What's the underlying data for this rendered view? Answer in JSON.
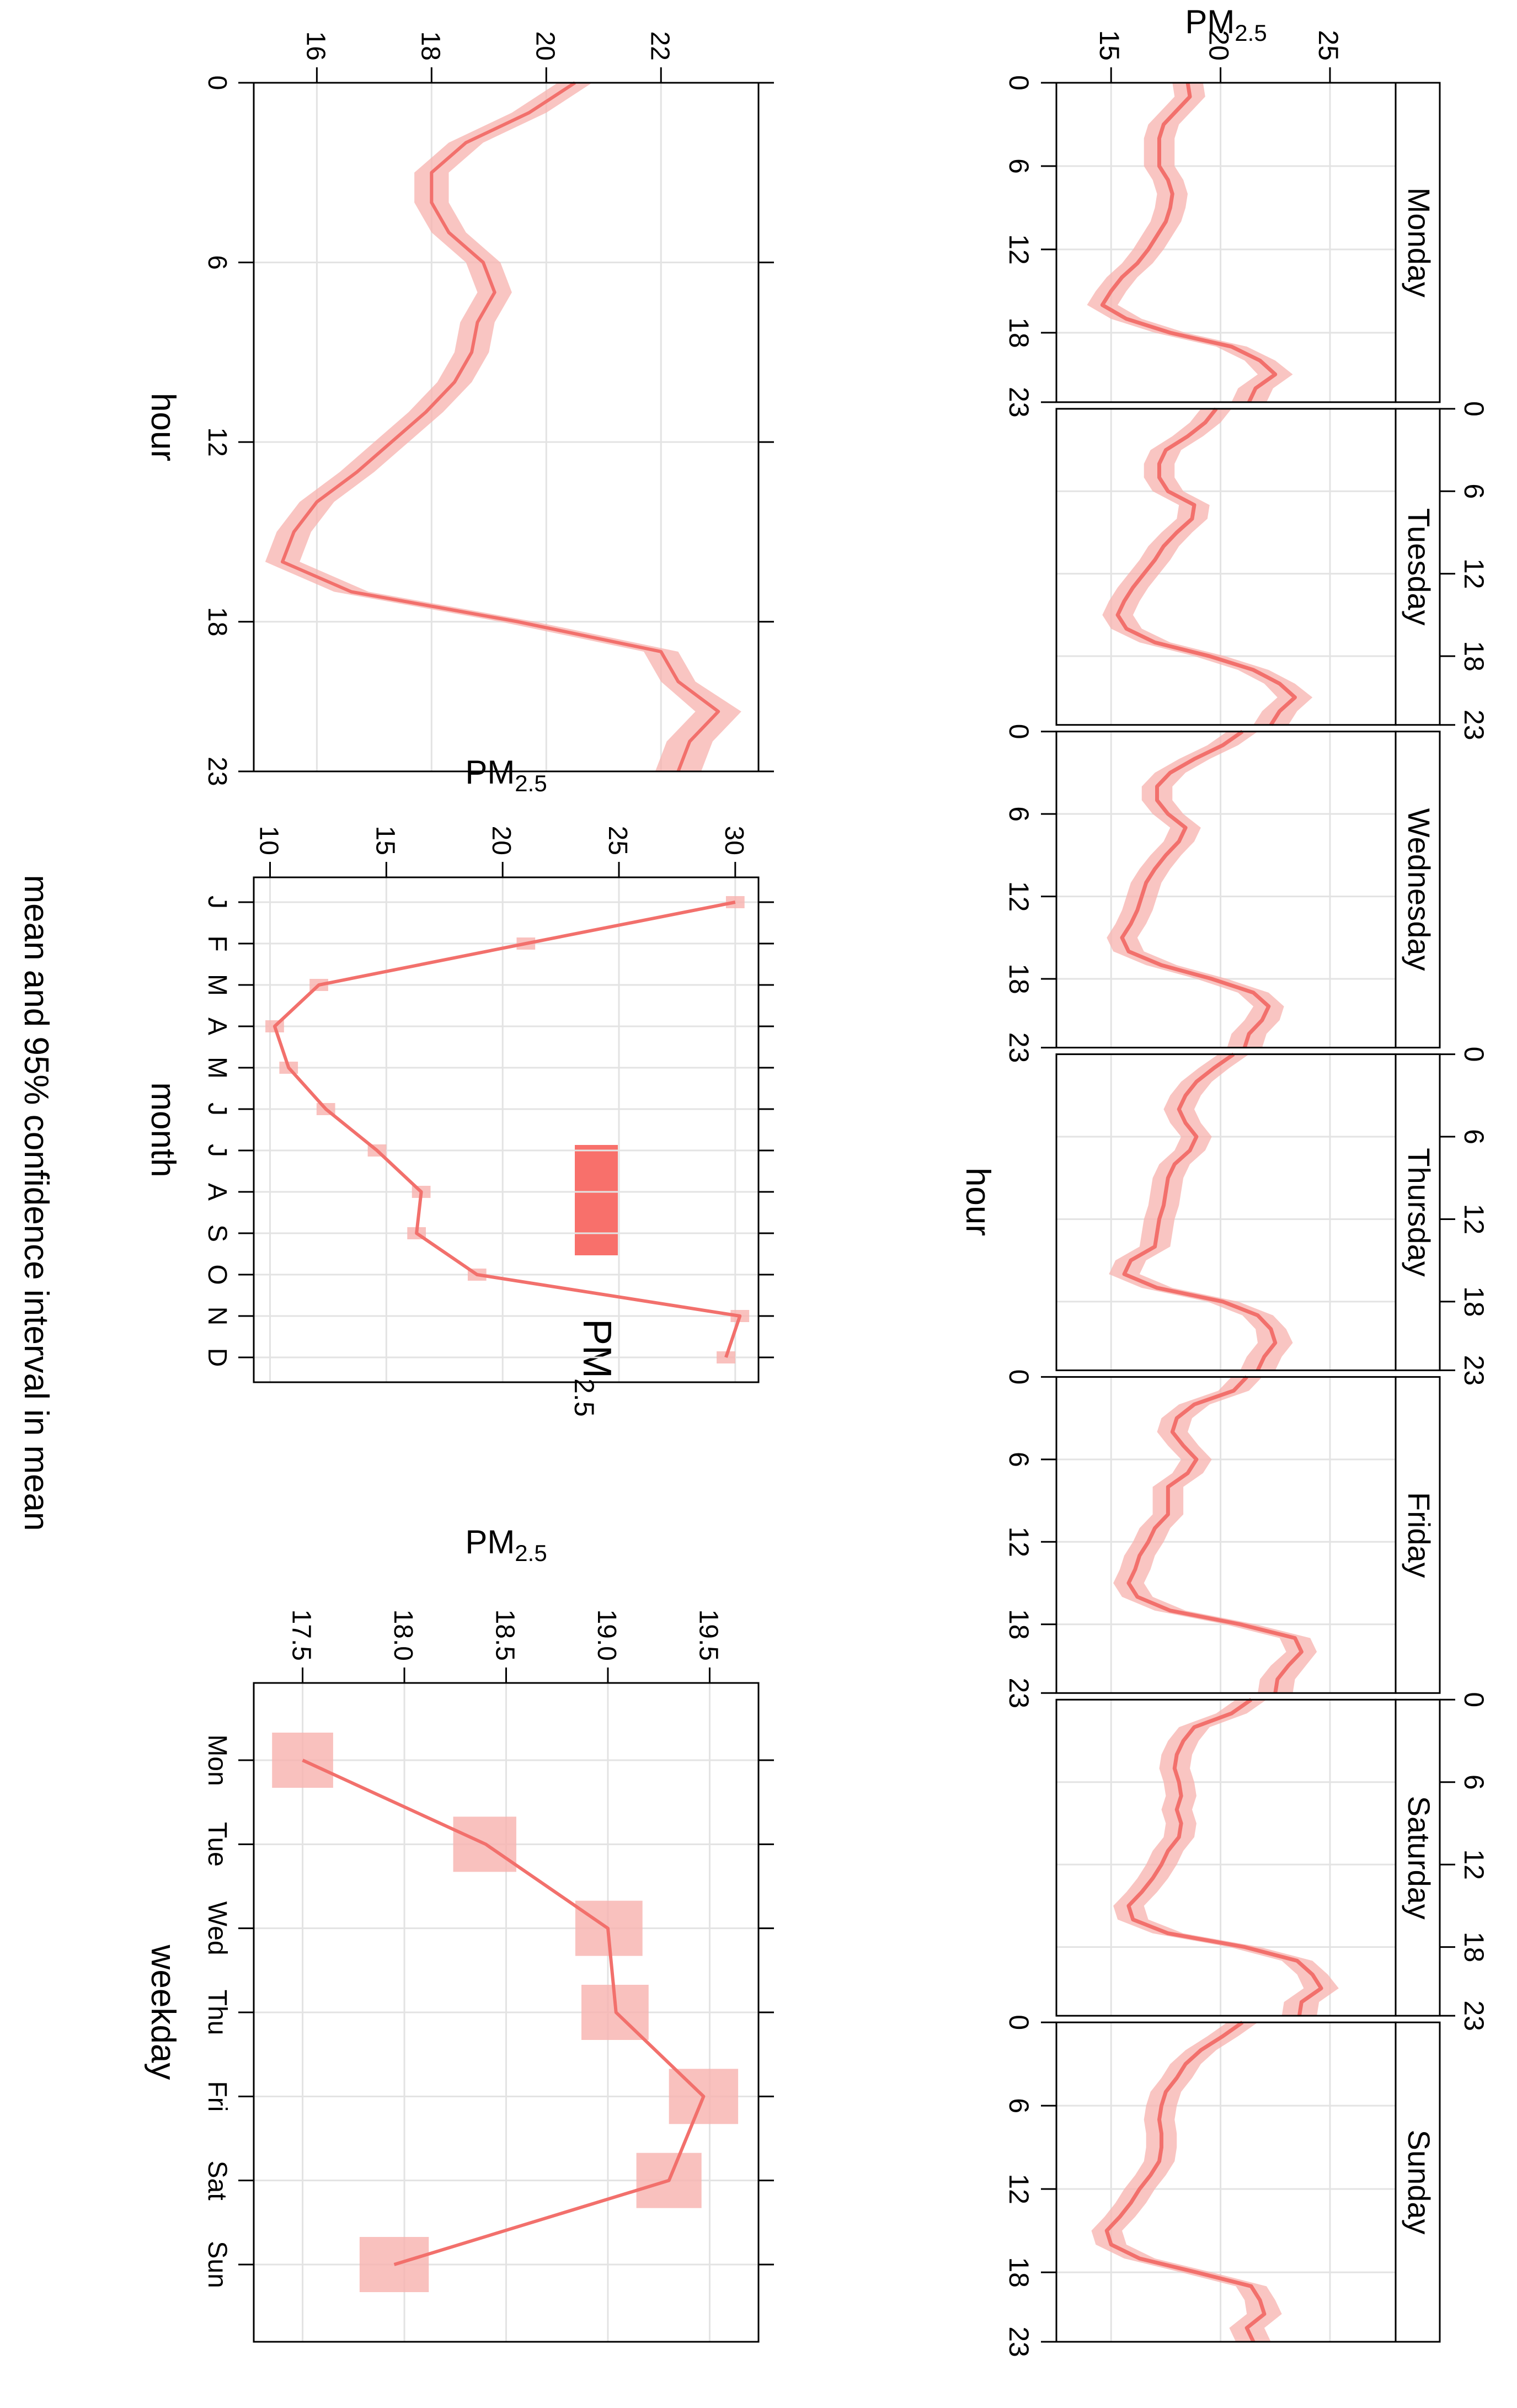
{
  "colors": {
    "line": "#f2706c",
    "band": "#f7b1ae",
    "legend": "#f8706b",
    "grid": "#e3e3e3",
    "axis": "#000000"
  },
  "legend": {
    "label": "PM",
    "label_sub": "2.5"
  },
  "overall_title": "mean and 95% confidence interval in mean",
  "chart_data": [
    {
      "id": "hour_by_weekday",
      "type": "line",
      "title": "",
      "xlabel": "hour",
      "ylabel": "PM",
      "ylabel_sub": "2.5",
      "xlim": [
        0,
        23
      ],
      "ylim": [
        12.5,
        28
      ],
      "x_ticks": [
        0,
        6,
        12,
        18,
        23
      ],
      "y_ticks": [
        15,
        20,
        25
      ],
      "panels": [
        {
          "name": "Monday",
          "values": [
            18.5,
            18.6,
            18.0,
            17.4,
            17.2,
            17.2,
            17.2,
            17.6,
            17.8,
            17.7,
            17.5,
            17.1,
            16.7,
            16.2,
            15.5,
            15.0,
            14.6,
            15.7,
            17.7,
            20.5,
            21.8,
            22.5,
            21.6,
            21.3
          ],
          "lower": [
            17.8,
            17.9,
            17.3,
            16.7,
            16.5,
            16.5,
            16.5,
            16.9,
            17.1,
            17.0,
            16.8,
            16.4,
            16.0,
            15.5,
            14.8,
            14.3,
            13.9,
            15.0,
            17.0,
            19.8,
            21.1,
            21.7,
            20.8,
            20.5
          ],
          "upper": [
            19.2,
            19.3,
            18.7,
            18.1,
            17.9,
            17.9,
            17.9,
            18.3,
            18.5,
            18.4,
            18.2,
            17.8,
            17.4,
            16.9,
            16.2,
            15.7,
            15.3,
            16.4,
            18.4,
            21.2,
            22.5,
            23.3,
            22.4,
            22.1
          ]
        },
        {
          "name": "Tuesday",
          "values": [
            19.8,
            19.3,
            18.5,
            17.5,
            17.2,
            17.2,
            17.6,
            18.8,
            18.7,
            18.0,
            17.4,
            17.0,
            16.5,
            16.0,
            15.6,
            15.3,
            15.7,
            17.0,
            19.5,
            21.5,
            22.7,
            23.4,
            22.7,
            22.3
          ],
          "lower": [
            19.1,
            18.6,
            17.8,
            16.8,
            16.5,
            16.5,
            16.9,
            18.1,
            18.0,
            17.3,
            16.7,
            16.3,
            15.8,
            15.3,
            14.9,
            14.6,
            15.0,
            16.3,
            18.8,
            20.8,
            22.0,
            22.6,
            21.9,
            21.5
          ],
          "upper": [
            20.5,
            20.0,
            19.2,
            18.2,
            17.9,
            17.9,
            18.3,
            19.5,
            19.4,
            18.7,
            18.1,
            17.7,
            17.2,
            16.7,
            16.3,
            16.0,
            16.4,
            17.7,
            20.2,
            22.2,
            23.4,
            24.2,
            23.5,
            23.1
          ]
        },
        {
          "name": "Wednesday",
          "values": [
            21.0,
            20.1,
            18.8,
            17.7,
            17.1,
            17.1,
            17.6,
            18.4,
            18.1,
            17.5,
            17.0,
            16.6,
            16.4,
            16.2,
            15.9,
            15.5,
            15.8,
            17.3,
            19.6,
            21.5,
            22.2,
            21.9,
            21.3,
            21.1
          ],
          "lower": [
            20.3,
            19.4,
            18.1,
            17.0,
            16.4,
            16.4,
            16.9,
            17.7,
            17.4,
            16.8,
            16.3,
            15.9,
            15.7,
            15.5,
            15.2,
            14.8,
            15.1,
            16.6,
            18.9,
            20.8,
            21.5,
            21.1,
            20.5,
            20.3
          ],
          "upper": [
            21.7,
            20.8,
            19.5,
            18.4,
            17.8,
            17.8,
            18.3,
            19.1,
            18.8,
            18.2,
            17.7,
            17.3,
            17.1,
            16.9,
            16.6,
            16.2,
            16.5,
            18.0,
            20.3,
            22.2,
            22.9,
            22.7,
            22.1,
            21.9
          ],
          "note": "no gap"
        },
        {
          "name": "Thursday",
          "values": [
            20.6,
            19.7,
            18.9,
            18.4,
            18.1,
            18.4,
            18.9,
            18.6,
            17.9,
            17.6,
            17.5,
            17.4,
            17.2,
            17.1,
            17.0,
            15.9,
            15.6,
            17.1,
            20.1,
            21.7,
            22.3,
            22.5,
            22.0,
            21.7
          ],
          "lower": [
            19.9,
            19.0,
            18.2,
            17.7,
            17.4,
            17.7,
            18.2,
            17.9,
            17.2,
            16.9,
            16.8,
            16.7,
            16.5,
            16.4,
            16.3,
            15.2,
            14.9,
            16.4,
            19.4,
            21.0,
            21.6,
            21.7,
            21.2,
            20.9
          ],
          "upper": [
            21.3,
            20.4,
            19.6,
            19.1,
            18.8,
            19.1,
            19.6,
            19.3,
            18.6,
            18.3,
            18.2,
            18.1,
            17.9,
            17.8,
            17.7,
            16.6,
            16.3,
            17.8,
            20.8,
            22.4,
            23.0,
            23.3,
            22.8,
            22.5
          ]
        },
        {
          "name": "Friday",
          "values": [
            21.2,
            20.6,
            18.8,
            18.0,
            17.8,
            18.3,
            18.9,
            18.5,
            17.6,
            17.6,
            17.6,
            17.0,
            16.7,
            16.3,
            16.1,
            15.8,
            16.2,
            17.7,
            20.9,
            23.4,
            23.7,
            23.1,
            22.6,
            22.5
          ],
          "lower": [
            20.5,
            19.9,
            18.1,
            17.3,
            17.1,
            17.6,
            18.2,
            17.8,
            16.9,
            16.9,
            16.9,
            16.3,
            16.0,
            15.6,
            15.4,
            15.1,
            15.5,
            17.0,
            20.2,
            22.7,
            23.0,
            22.3,
            21.8,
            21.7
          ],
          "upper": [
            21.9,
            21.3,
            19.5,
            18.7,
            18.5,
            19.0,
            19.6,
            19.2,
            18.3,
            18.3,
            18.3,
            17.7,
            17.4,
            17.0,
            16.8,
            16.5,
            16.9,
            18.4,
            21.6,
            24.1,
            24.4,
            23.9,
            23.4,
            23.3
          ]
        },
        {
          "name": "Saturday",
          "values": [
            21.4,
            20.5,
            18.8,
            18.3,
            18.0,
            17.9,
            18.1,
            18.2,
            18.0,
            18.2,
            18.1,
            17.6,
            17.3,
            16.9,
            16.4,
            15.8,
            16.0,
            17.6,
            21.1,
            23.5,
            24.2,
            24.6,
            23.7,
            23.6
          ],
          "lower": [
            20.7,
            19.8,
            18.1,
            17.6,
            17.3,
            17.2,
            17.4,
            17.5,
            17.3,
            17.5,
            17.4,
            16.9,
            16.6,
            16.2,
            15.7,
            15.1,
            15.3,
            16.9,
            20.4,
            22.8,
            23.5,
            23.8,
            22.9,
            22.8
          ],
          "upper": [
            22.1,
            21.2,
            19.5,
            19.0,
            18.7,
            18.6,
            18.8,
            18.9,
            18.7,
            18.9,
            18.8,
            18.3,
            18.0,
            17.6,
            17.1,
            16.5,
            16.7,
            18.3,
            21.8,
            24.2,
            24.9,
            25.4,
            24.5,
            24.4
          ]
        },
        {
          "name": "Sunday",
          "values": [
            21.0,
            20.1,
            19.1,
            18.4,
            18.0,
            17.5,
            17.3,
            17.2,
            17.3,
            17.3,
            17.2,
            16.8,
            16.3,
            15.9,
            15.4,
            14.8,
            15.0,
            16.3,
            18.9,
            21.4,
            21.8,
            22.0,
            21.2,
            21.5
          ],
          "lower": [
            20.3,
            19.4,
            18.4,
            17.7,
            17.3,
            16.8,
            16.6,
            16.5,
            16.6,
            16.6,
            16.5,
            16.1,
            15.6,
            15.2,
            14.7,
            14.1,
            14.3,
            15.6,
            18.2,
            20.7,
            21.1,
            21.2,
            20.4,
            20.7
          ],
          "upper": [
            21.7,
            20.8,
            19.8,
            19.1,
            18.7,
            18.2,
            18.0,
            17.9,
            18.0,
            18.0,
            17.9,
            17.5,
            17.0,
            16.6,
            16.1,
            15.5,
            15.7,
            17.0,
            19.6,
            22.1,
            22.5,
            22.8,
            22.0,
            22.3
          ]
        }
      ]
    },
    {
      "id": "hour_overall",
      "type": "line",
      "title": "",
      "xlabel": "hour",
      "ylabel": "PM",
      "ylabel_sub": "2.5",
      "xlim": [
        0,
        23
      ],
      "ylim": [
        14.9,
        23.7
      ],
      "x_ticks": [
        0,
        6,
        12,
        18,
        23
      ],
      "y_ticks": [
        16,
        18,
        20,
        22
      ],
      "x": [
        0,
        1,
        2,
        3,
        4,
        5,
        6,
        7,
        8,
        9,
        10,
        11,
        12,
        13,
        14,
        15,
        16,
        17,
        18,
        19,
        20,
        21,
        22,
        23
      ],
      "values": [
        20.5,
        19.7,
        18.6,
        18.0,
        18.0,
        18.3,
        18.9,
        19.1,
        18.8,
        18.7,
        18.4,
        17.9,
        17.3,
        16.7,
        16.0,
        15.6,
        15.4,
        16.6,
        19.5,
        22.0,
        22.3,
        23.0,
        22.5,
        22.3
      ],
      "lower": [
        20.2,
        19.4,
        18.3,
        17.7,
        17.7,
        18.0,
        18.6,
        18.8,
        18.5,
        18.4,
        18.1,
        17.6,
        17.0,
        16.4,
        15.7,
        15.3,
        15.1,
        16.3,
        19.2,
        21.7,
        22.0,
        22.6,
        22.1,
        21.9
      ],
      "upper": [
        20.8,
        20.0,
        18.9,
        18.3,
        18.3,
        18.6,
        19.2,
        19.4,
        19.1,
        19.0,
        18.7,
        18.2,
        17.6,
        17.0,
        16.3,
        15.9,
        15.7,
        16.9,
        19.8,
        22.3,
        22.6,
        23.4,
        22.9,
        22.7
      ]
    },
    {
      "id": "month",
      "type": "line",
      "title": "",
      "xlabel": "month",
      "ylabel": "PM",
      "ylabel_sub": "2.5",
      "ylim": [
        9.3,
        31
      ],
      "y_ticks": [
        10,
        15,
        20,
        25,
        30
      ],
      "categories": [
        "J",
        "F",
        "M",
        "A",
        "M",
        "J",
        "J",
        "A",
        "S",
        "O",
        "N",
        "D"
      ],
      "values": [
        30.0,
        21.0,
        12.1,
        10.2,
        10.8,
        12.4,
        14.6,
        16.5,
        16.3,
        18.9,
        30.2,
        29.6
      ],
      "lower": [
        29.6,
        20.6,
        11.7,
        9.8,
        10.4,
        12.0,
        14.2,
        16.1,
        15.9,
        18.5,
        29.8,
        29.2
      ],
      "upper": [
        30.4,
        21.4,
        12.5,
        10.6,
        11.2,
        12.8,
        15.0,
        16.9,
        16.7,
        19.3,
        30.6,
        30.0
      ]
    },
    {
      "id": "weekday",
      "type": "line",
      "title": "",
      "xlabel": "weekday",
      "ylabel": "PM",
      "ylabel_sub": "2.5",
      "ylim": [
        17.26,
        19.74
      ],
      "y_ticks": [
        17.5,
        18.0,
        18.5,
        19.0,
        19.5
      ],
      "y_tick_labels": [
        "17.5",
        "18.0",
        "18.5",
        "19.0",
        "19.5"
      ],
      "categories": [
        "Mon",
        "Tue",
        "Wed",
        "Thu",
        "Fri",
        "Sat",
        "Sun"
      ],
      "values": [
        17.5,
        18.4,
        19.0,
        19.04,
        19.47,
        19.3,
        17.95
      ],
      "lower": [
        17.35,
        18.24,
        18.84,
        18.87,
        19.3,
        19.14,
        17.78
      ],
      "upper": [
        17.65,
        18.55,
        19.17,
        19.2,
        19.64,
        19.46,
        18.12
      ]
    }
  ]
}
